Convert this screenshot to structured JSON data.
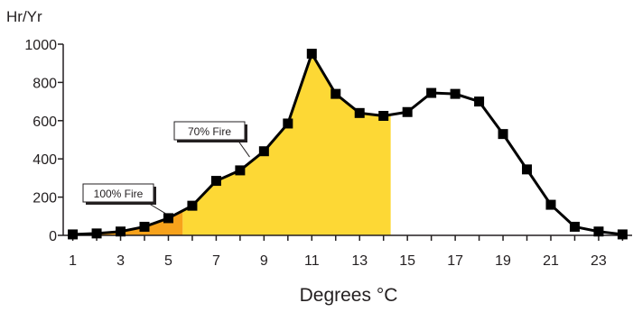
{
  "chart_data": {
    "type": "line",
    "ylabel": "Hr/Yr",
    "xlabel": "Degrees °C",
    "x": [
      1,
      2,
      3,
      4,
      5,
      6,
      7,
      8,
      9,
      10,
      11,
      12,
      13,
      14,
      15,
      16,
      17,
      18,
      19,
      20,
      21,
      22,
      23,
      24
    ],
    "values": [
      5,
      10,
      20,
      45,
      90,
      155,
      285,
      340,
      440,
      585,
      950,
      740,
      640,
      625,
      645,
      745,
      740,
      700,
      530,
      345,
      160,
      45,
      20,
      5
    ],
    "xlim": [
      0.6,
      24.4
    ],
    "ylim": [
      0,
      1000
    ],
    "x_ticks": [
      1,
      3,
      5,
      7,
      9,
      11,
      13,
      15,
      17,
      19,
      21,
      23
    ],
    "y_ticks": [
      0,
      200,
      400,
      600,
      800,
      1000
    ],
    "shaded_regions": [
      {
        "label": "100% Fire",
        "x_from": 1,
        "x_to": 5.6,
        "color": "#f7a21b"
      },
      {
        "label": "70% Fire",
        "x_from": 5.6,
        "x_to": 14.3,
        "color": "#fdd835"
      }
    ],
    "line_color": "#000000",
    "marker": "square",
    "grid": false
  }
}
